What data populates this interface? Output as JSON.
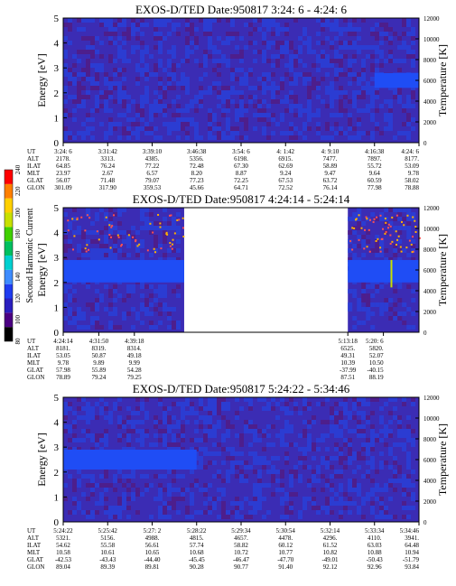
{
  "colorbar": {
    "label": "Second Harmonic Current",
    "ticks": [
      "80",
      "100",
      "120",
      "140",
      "160",
      "180",
      "200",
      "220",
      "240"
    ],
    "colors": [
      "#000000",
      "#4b0082",
      "#2a1fbf",
      "#1f3cf0",
      "#3e8cff",
      "#00d0d0",
      "#00c060",
      "#40d000",
      "#c8e000",
      "#ffd000",
      "#ff8000",
      "#ff0000"
    ]
  },
  "panels": [
    {
      "title": "EXOS-D/TED   Date:950817  3:24: 6 - 4:24: 6",
      "ylabel": "Energy [eV]",
      "y2label": "Temperature [K]",
      "energy_ticks": [
        "0",
        "1",
        "2",
        "3",
        "4",
        "5"
      ],
      "temp_ticks": [
        "0",
        "2000",
        "4000",
        "6000",
        "8000",
        "10000",
        "12000"
      ],
      "row_labels": [
        "UT",
        "ALT",
        "ILAT",
        "MLT",
        "GLAT",
        "GLON"
      ],
      "columns": [
        [
          "3:24: 6",
          "2178.",
          "64.85",
          "23.97",
          "56.07",
          "301.09"
        ],
        [
          "3:31:42",
          "3313.",
          "76.24",
          "2.67",
          "71.48",
          "317.90"
        ],
        [
          "3:39:10",
          "4385.",
          "77.22",
          "6.57",
          "79.07",
          "359.53"
        ],
        [
          "3:46:38",
          "5356.",
          "72.48",
          "8.20",
          "77.23",
          "45.66"
        ],
        [
          "3:54: 6",
          "6198.",
          "67.30",
          "8.87",
          "72.25",
          "64.71"
        ],
        [
          "4: 1:42",
          "6915.",
          "62.69",
          "9.24",
          "67.53",
          "72.52"
        ],
        [
          "4: 9:10",
          "7477.",
          "58.89",
          "9.47",
          "63.72",
          "76.14"
        ],
        [
          "4:16:38",
          "7897.",
          "55.72",
          "9.64",
          "60.59",
          "77.98"
        ],
        [
          "4:24: 6",
          "8177.",
          "53.09",
          "9.78",
          "58.02",
          "78.88"
        ]
      ]
    },
    {
      "title": "EXOS-D/TED   Date:950817  4:24:14 - 5:24:14",
      "ylabel": "Energy [eV]",
      "y2label": "Temperature [K]",
      "energy_ticks": [
        "0",
        "1",
        "2",
        "3",
        "4",
        "5"
      ],
      "temp_ticks": [
        "0",
        "2000",
        "4000",
        "6000",
        "8000",
        "10000",
        "12000"
      ],
      "row_labels": [
        "UT",
        "ALT",
        "ILAT",
        "MLT",
        "GLAT",
        "GLON"
      ],
      "columns": [
        [
          "4:24:14",
          "8181.",
          "53.05",
          "9.78",
          "57.98",
          "78.89"
        ],
        [
          "4:31:50",
          "8319.",
          "50.87",
          "9.89",
          "55.89",
          "79.24"
        ],
        [
          "4:39:18",
          "8314.",
          "49.18",
          "9.99",
          "54.28",
          "79.25"
        ],
        [
          "5:13:18",
          "6525.",
          "49.31",
          "10.39",
          "-37.99",
          "87.51"
        ],
        [
          "5:20: 6",
          "5820.",
          "52.07",
          "10.50",
          "-40.15",
          "88.19"
        ]
      ]
    },
    {
      "title": "EXOS-D/TED   Date:950817  5:24:22 - 5:34:46",
      "ylabel": "Energy [eV]",
      "y2label": "Temperature [K]",
      "energy_ticks": [
        "0",
        "1",
        "2",
        "3",
        "4",
        "5"
      ],
      "temp_ticks": [
        "0",
        "2000",
        "4000",
        "6000",
        "8000",
        "10000",
        "12000"
      ],
      "row_labels": [
        "UT",
        "ALT",
        "ILAT",
        "MLT",
        "GLAT",
        "GLON"
      ],
      "columns": [
        [
          "5:24:22",
          "5321.",
          "54.62",
          "10.58",
          "-42.53",
          "89.04"
        ],
        [
          "5:25:42",
          "5156.",
          "55.58",
          "10.61",
          "-43.43",
          "89.39"
        ],
        [
          "5:27: 2",
          "4988.",
          "56.61",
          "10.65",
          "-44.40",
          "89.81"
        ],
        [
          "5:28:22",
          "4815.",
          "57.74",
          "10.68",
          "-45.45",
          "90.28"
        ],
        [
          "5:29:34",
          "4657.",
          "58.82",
          "10.72",
          "-46.47",
          "90.77"
        ],
        [
          "5:30:54",
          "4478.",
          "60.12",
          "10.77",
          "-47.70",
          "91.40"
        ],
        [
          "5:32:14",
          "4296.",
          "61.52",
          "10.82",
          "-49.01",
          "92.12"
        ],
        [
          "5:33:34",
          "4110.",
          "63.03",
          "10.88",
          "-50.43",
          "92.96"
        ],
        [
          "5:34:46",
          "3941.",
          "64.48",
          "10.94",
          "-51.79",
          "93.84"
        ]
      ]
    }
  ],
  "chart_data": [
    {
      "type": "heatmap",
      "title": "EXOS-D/TED   Date:950817  3:24: 6 - 4:24: 6",
      "ylabel": "Energy [eV]",
      "ylim": [
        0,
        5
      ],
      "y2label": "Temperature [K]",
      "y2lim": [
        0,
        12000
      ],
      "x": [
        "3:24: 6",
        "3:31:42",
        "3:39:10",
        "3:46:38",
        "3:54: 6",
        "4: 1:42",
        "4: 9:10",
        "4:16:38",
        "4:24: 6"
      ],
      "colorbar_range": [
        80,
        240
      ],
      "features": [
        {
          "name": "band",
          "ut_start": "4:16:38",
          "ut_end": "4:24: 6",
          "energy_range": [
            2.2,
            2.8
          ],
          "level": 140
        }
      ]
    },
    {
      "type": "heatmap",
      "title": "EXOS-D/TED   Date:950817  4:24:14 - 5:24:14",
      "ylabel": "Energy [eV]",
      "ylim": [
        0,
        5
      ],
      "y2label": "Temperature [K]",
      "y2lim": [
        0,
        12000
      ],
      "x": [
        "4:24:14",
        "4:31:50",
        "4:39:18",
        "5:13:18",
        "5:20: 6"
      ],
      "colorbar_range": [
        80,
        240
      ],
      "data_gap": [
        "4:39:18",
        "5:13:18"
      ],
      "features": [
        {
          "name": "band",
          "energy_range": [
            2.0,
            2.9
          ],
          "level": 140
        }
      ]
    },
    {
      "type": "heatmap",
      "title": "EXOS-D/TED   Date:950817  5:24:22 - 5:34:46",
      "ylabel": "Energy [eV]",
      "ylim": [
        0,
        5
      ],
      "y2label": "Temperature [K]",
      "y2lim": [
        0,
        12000
      ],
      "x": [
        "5:24:22",
        "5:25:42",
        "5:27: 2",
        "5:28:22",
        "5:29:34",
        "5:30:54",
        "5:32:14",
        "5:33:34",
        "5:34:46"
      ],
      "colorbar_range": [
        80,
        240
      ],
      "features": [
        {
          "name": "band",
          "ut_start": "5:24:22",
          "ut_end": "5:28:22",
          "energy_range": [
            2.1,
            2.9
          ],
          "level": 140
        }
      ]
    }
  ]
}
